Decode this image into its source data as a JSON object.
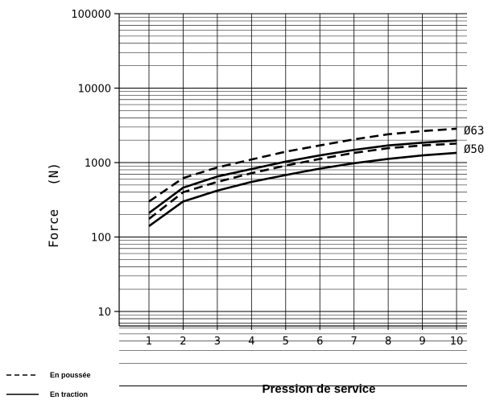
{
  "chart_data": {
    "type": "line",
    "xlabel": "Pression de service",
    "ylabel": "Force   (N)",
    "x_ticks": [
      "1",
      "2",
      "3",
      "4",
      "5",
      "6",
      "7",
      "8",
      "9",
      "10"
    ],
    "y_ticks": [
      "10",
      "100",
      "1000",
      "10000",
      "100000"
    ],
    "x": [
      1,
      2,
      3,
      4,
      5,
      6,
      7,
      8,
      9,
      10
    ],
    "xlim": [
      0.55,
      10.5
    ],
    "ylim": [
      5,
      100000
    ],
    "y_scale": "log",
    "grid": true,
    "series": [
      {
        "name": "Ø63",
        "style": "dashed",
        "values": [
          300,
          620,
          860,
          1100,
          1400,
          1700,
          2050,
          2400,
          2650,
          2850
        ]
      },
      {
        "name": "Ø63",
        "style": "solid",
        "values": [
          210,
          460,
          650,
          820,
          1030,
          1250,
          1480,
          1700,
          1850,
          1980
        ]
      },
      {
        "name": "Ø50",
        "style": "dashed",
        "values": [
          175,
          400,
          550,
          720,
          910,
          1120,
          1350,
          1560,
          1700,
          1800
        ]
      },
      {
        "name": "Ø50",
        "style": "solid",
        "values": [
          140,
          300,
          420,
          550,
          680,
          830,
          980,
          1120,
          1250,
          1350
        ]
      }
    ],
    "curve_labels": [
      "Ø63",
      "Ø50"
    ],
    "legend": [
      {
        "label": "En poussée",
        "style": "dashed"
      },
      {
        "label": "En traction",
        "style": "solid"
      }
    ]
  }
}
